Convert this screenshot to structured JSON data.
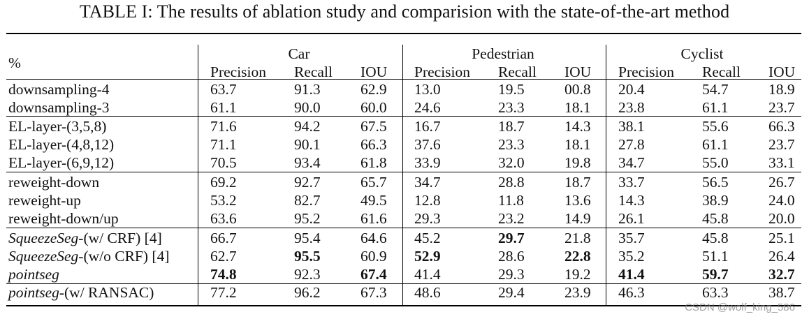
{
  "caption": "TABLE I: The results of ablation study and comparision with the state-of-the-art method",
  "unit_header": "%",
  "groups": [
    "Car",
    "Pedestrian",
    "Cyclist"
  ],
  "metrics": [
    "Precision",
    "Recall",
    "IOU"
  ],
  "rows": [
    {
      "method": "downsampling-4",
      "values": [
        "63.7",
        "91.3",
        "62.9",
        "13.0",
        "19.5",
        "00.8",
        "20.4",
        "54.7",
        "18.9"
      ]
    },
    {
      "method": "downsampling-3",
      "values": [
        "61.1",
        "90.0",
        "60.0",
        "24.6",
        "23.3",
        "18.1",
        "23.8",
        "61.1",
        "23.7"
      ]
    },
    {
      "method": "EL-layer-(3,5,8)",
      "values": [
        "71.6",
        "94.2",
        "67.5",
        "16.7",
        "18.7",
        "14.3",
        "38.1",
        "55.6",
        "66.3"
      ]
    },
    {
      "method": "EL-layer-(4,8,12)",
      "values": [
        "71.1",
        "90.1",
        "66.3",
        "37.6",
        "23.3",
        "18.1",
        "27.8",
        "61.1",
        "23.7"
      ]
    },
    {
      "method": "EL-layer-(6,9,12)",
      "values": [
        "70.5",
        "93.4",
        "61.8",
        "33.9",
        "32.0",
        "19.8",
        "34.7",
        "55.0",
        "33.1"
      ]
    },
    {
      "method": "reweight-down",
      "values": [
        "69.2",
        "92.7",
        "65.7",
        "34.7",
        "28.8",
        "18.7",
        "33.7",
        "56.5",
        "26.7"
      ]
    },
    {
      "method": "reweight-up",
      "values": [
        "53.2",
        "82.7",
        "49.5",
        "12.8",
        "11.8",
        "13.6",
        "14.3",
        "38.9",
        "24.0"
      ]
    },
    {
      "method": "reweight-down/up",
      "values": [
        "63.6",
        "95.2",
        "61.6",
        "29.3",
        "23.2",
        "14.9",
        "26.1",
        "45.8",
        "20.0"
      ]
    },
    {
      "method_italic": "SqueezeSeg",
      "method_rest": "-(w/ CRF) [4]",
      "values": [
        "66.7",
        "95.4",
        "64.6",
        "45.2",
        "29.7",
        "21.8",
        "35.7",
        "45.8",
        "25.1"
      ],
      "bold": [
        4
      ]
    },
    {
      "method_italic": "SqueezeSeg",
      "method_rest": "-(w/o CRF) [4]",
      "values": [
        "62.7",
        "95.5",
        "60.9",
        "52.9",
        "28.6",
        "22.8",
        "35.2",
        "51.1",
        "26.4"
      ],
      "bold": [
        1,
        3,
        5
      ]
    },
    {
      "method_italic": "pointseg",
      "method_rest": "",
      "values": [
        "74.8",
        "92.3",
        "67.4",
        "41.4",
        "29.3",
        "19.2",
        "41.4",
        "59.7",
        "32.7"
      ],
      "bold": [
        0,
        2,
        6,
        7,
        8
      ]
    },
    {
      "method_italic": "pointseg",
      "method_rest": "-(w/ RANSAC)",
      "values": [
        "77.2",
        "96.2",
        "67.3",
        "48.6",
        "29.4",
        "23.9",
        "46.3",
        "63.3",
        "38.7"
      ]
    }
  ],
  "watermark": "CSDN @wolf_king_586"
}
